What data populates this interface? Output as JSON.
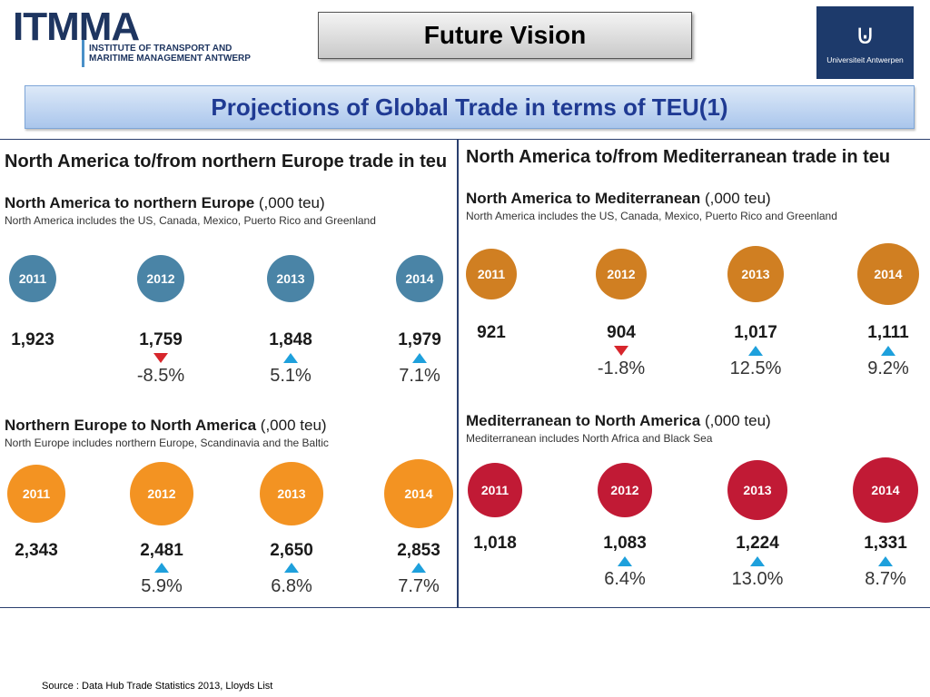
{
  "header": {
    "logo_main": "ITMMA",
    "logo_sub_line1": "INSTITUTE OF TRANSPORT AND",
    "logo_sub_line2": "MARITIME MANAGEMENT ANTWERP",
    "title": "Future Vision",
    "university": "Universiteit Antwerpen",
    "subtitle": "Projections of Global Trade in terms of TEU(1)"
  },
  "colors": {
    "blue": "#4a84a6",
    "orange": "#f39322",
    "brown": "#d07f22",
    "red": "#c11a35",
    "up_arrow": "#1ea0dc",
    "down_arrow": "#d7262c"
  },
  "left": {
    "panel_title": "North America to/from northern Europe trade in teu",
    "sections": [
      {
        "title_bold": "North America to northern Europe",
        "title_unit": " (,000 teu)",
        "note": "North America includes the US, Canada, Mexico, Puerto Rico and Greenland",
        "years": [
          "2011",
          "2012",
          "2013",
          "2014"
        ],
        "values": [
          "1,923",
          "1,759",
          "1,848",
          "1,979"
        ],
        "changes": [
          "",
          "-8.5%",
          "5.1%",
          "7.1%"
        ],
        "directions": [
          "",
          "down",
          "up",
          "up"
        ]
      },
      {
        "title_bold": "Northern Europe to North America",
        "title_unit": " (,000 teu)",
        "note": "North Europe includes northern Europe, Scandinavia and the Baltic",
        "years": [
          "2011",
          "2012",
          "2013",
          "2014"
        ],
        "values": [
          "2,343",
          "2,481",
          "2,650",
          "2,853"
        ],
        "changes": [
          "",
          "5.9%",
          "6.8%",
          "7.7%"
        ],
        "directions": [
          "",
          "up",
          "up",
          "up"
        ]
      }
    ]
  },
  "right": {
    "panel_title": "North America to/from Mediterranean trade in teu",
    "sections": [
      {
        "title_bold": "North America to Mediterranean",
        "title_unit": " (,000 teu)",
        "note": "North America includes the US, Canada, Mexico, Puerto Rico and Greenland",
        "years": [
          "2011",
          "2012",
          "2013",
          "2014"
        ],
        "values": [
          "921",
          "904",
          "1,017",
          "1,111"
        ],
        "changes": [
          "",
          "-1.8%",
          "12.5%",
          "9.2%"
        ],
        "directions": [
          "",
          "down",
          "up",
          "up"
        ]
      },
      {
        "title_bold": "Mediterranean to North America",
        "title_unit": " (,000 teu)",
        "note": "Mediterranean includes North Africa and Black Sea",
        "years": [
          "2011",
          "2012",
          "2013",
          "2014"
        ],
        "values": [
          "1,018",
          "1,083",
          "1,224",
          "1,331"
        ],
        "changes": [
          "",
          "6.4%",
          "13.0%",
          "8.7%"
        ],
        "directions": [
          "",
          "up",
          "up",
          "up"
        ]
      }
    ]
  },
  "footer": {
    "source": "Source :  Data Hub Trade Statistics 2013, Lloyds List"
  }
}
